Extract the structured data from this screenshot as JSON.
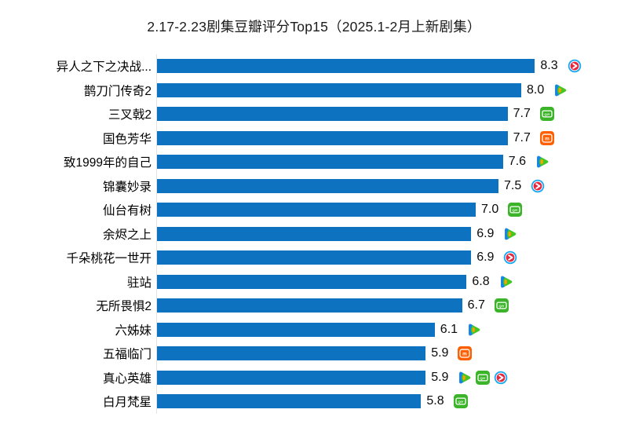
{
  "title": "2.17-2.23剧集豆瓣评分Top15（2025.1-2月上新剧集）",
  "chart_data": {
    "type": "bar",
    "orientation": "horizontal",
    "title": "2.17-2.23剧集豆瓣评分Top15（2025.1-2月上新剧集）",
    "xlabel": "",
    "ylabel": "",
    "xlim": [
      0,
      8.6
    ],
    "grid": false,
    "legend": "none",
    "value_labels": "outside-end, one decimal",
    "categories": [
      "异人之下之决战...",
      "鹊刀门传奇2",
      "三叉戟2",
      "国色芳华",
      "致1999年的自己",
      "锦囊妙录",
      "仙台有树",
      "余烬之上",
      "千朵桃花一世开",
      "驻站",
      "无所畏惧2",
      "六姊妹",
      "五福临门",
      "真心英雄",
      "白月梵星"
    ],
    "values": [
      8.3,
      8.0,
      7.7,
      7.7,
      7.6,
      7.5,
      7.0,
      6.9,
      6.9,
      6.8,
      6.7,
      6.1,
      5.9,
      5.9,
      5.8
    ],
    "platform_icons": [
      [
        "youku"
      ],
      [
        "tencent-video"
      ],
      [
        "iqiyi"
      ],
      [
        "mango-tv"
      ],
      [
        "tencent-video"
      ],
      [
        "youku"
      ],
      [
        "iqiyi"
      ],
      [
        "tencent-video"
      ],
      [
        "youku"
      ],
      [
        "tencent-video"
      ],
      [
        "iqiyi"
      ],
      [
        "tencent-video"
      ],
      [
        "mango-tv"
      ],
      [
        "tencent-video",
        "iqiyi",
        "youku"
      ],
      [
        "iqiyi"
      ]
    ]
  },
  "platforms": {
    "youku": {
      "name": "优酷",
      "ring_color": "#14a8f5",
      "center_color": "#e6283e"
    },
    "tencent-video": {
      "name": "腾讯视频",
      "blue": "#1485ee",
      "green": "#45c723",
      "orange": "#ffa200"
    },
    "iqiyi": {
      "name": "爱奇艺",
      "green": "#3bb42a",
      "badge_text": "QIY"
    },
    "mango-tv": {
      "name": "芒果TV",
      "orange": "#ff5f00",
      "badge_text": "m"
    }
  },
  "colors": {
    "bar": "#0d72bf",
    "title_text": "#1a1a1a",
    "label_text": "#000000",
    "axis_line": "#e3e3e3",
    "background": "#ffffff"
  }
}
